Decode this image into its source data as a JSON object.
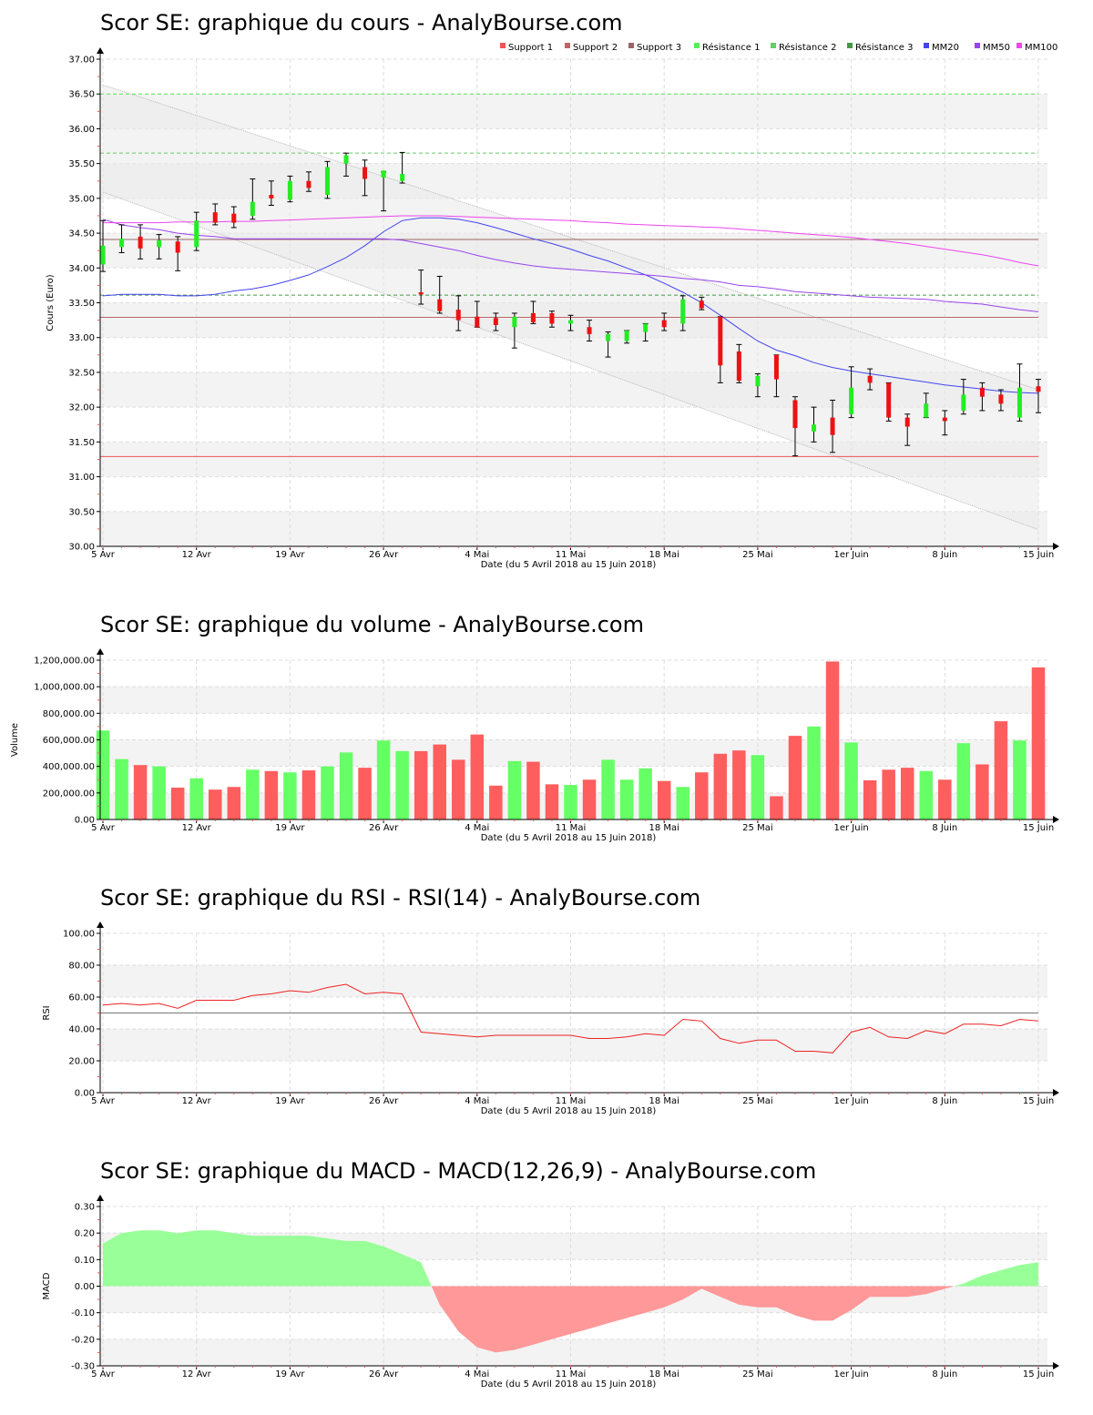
{
  "colors": {
    "up": "#22ee22",
    "down": "#ee1111",
    "vol_up": "#66ff66",
    "vol_down": "#ff5e5e",
    "macd_pos": "#99ff99",
    "macd_neg": "#ff9999",
    "mm20": "#4444ee",
    "mm50": "#9944ee",
    "mm100": "#ee44ee",
    "support1": "#ee5555",
    "support2": "#bb6666",
    "support3": "#996666",
    "res1": "#55ee55",
    "res2": "#66cc66",
    "res3": "#449944",
    "rsi": "#ee2222"
  },
  "chart_data": [
    {
      "id": "price",
      "type": "candlestick",
      "title": "Scor SE: graphique du cours - AnalyBourse.com",
      "ylabel": "Cours (Euro)",
      "xlabel": "Date (du 5 Avril 2018 au 15 Juin 2018)",
      "ylim": [
        30,
        37
      ],
      "yticks": [
        "30.00",
        "30.50",
        "31.00",
        "31.50",
        "32.00",
        "32.50",
        "33.00",
        "33.50",
        "34.00",
        "34.50",
        "35.00",
        "35.50",
        "36.00",
        "36.50",
        "37.00"
      ],
      "xticks": [
        {
          "i": 0,
          "label": "5 Avr"
        },
        {
          "i": 5,
          "label": "12 Avr"
        },
        {
          "i": 10,
          "label": "19 Avr"
        },
        {
          "i": 15,
          "label": "26 Avr"
        },
        {
          "i": 20,
          "label": "4 Mai"
        },
        {
          "i": 25,
          "label": "11 Mai"
        },
        {
          "i": 30,
          "label": "18 Mai"
        },
        {
          "i": 35,
          "label": "25 Mai"
        },
        {
          "i": 40,
          "label": "1er Juin"
        },
        {
          "i": 45,
          "label": "8 Juin"
        },
        {
          "i": 50,
          "label": "15 Juin"
        }
      ],
      "legend": [
        {
          "name": "Support 1",
          "color": "support1"
        },
        {
          "name": "Support 2",
          "color": "support2"
        },
        {
          "name": "Support 3",
          "color": "support3"
        },
        {
          "name": "Résistance 1",
          "color": "res1"
        },
        {
          "name": "Résistance 2",
          "color": "res2"
        },
        {
          "name": "Résistance 3",
          "color": "res3"
        },
        {
          "name": "MM20",
          "color": "mm20"
        },
        {
          "name": "MM50",
          "color": "mm50"
        },
        {
          "name": "MM100",
          "color": "mm100"
        }
      ],
      "levels": [
        {
          "name": "Support 1",
          "value": 31.29,
          "color": "support1",
          "dash": false
        },
        {
          "name": "Support 2",
          "value": 33.29,
          "color": "support2",
          "dash": false
        },
        {
          "name": "Support 3",
          "value": 34.41,
          "color": "support3",
          "dash": false
        },
        {
          "name": "Résistance 1",
          "value": 36.5,
          "color": "res1",
          "dash": true
        },
        {
          "name": "Résistance 2",
          "value": 35.65,
          "color": "res2",
          "dash": true
        },
        {
          "name": "Résistance 3",
          "value": 33.61,
          "color": "res3",
          "dash": true
        }
      ],
      "channel": {
        "upper": [
          [
            0,
            36.63
          ],
          [
            50,
            32.25
          ]
        ],
        "lower": [
          [
            0,
            35.09
          ],
          [
            50,
            30.24
          ]
        ]
      },
      "candles": [
        {
          "o": 34.05,
          "h": 34.68,
          "l": 33.95,
          "c": 34.32
        },
        {
          "o": 34.3,
          "h": 34.62,
          "l": 34.22,
          "c": 34.42
        },
        {
          "o": 34.45,
          "h": 34.62,
          "l": 34.13,
          "c": 34.28
        },
        {
          "o": 34.3,
          "h": 34.48,
          "l": 34.13,
          "c": 34.4
        },
        {
          "o": 34.38,
          "h": 34.45,
          "l": 33.96,
          "c": 34.22
        },
        {
          "o": 34.3,
          "h": 34.8,
          "l": 34.25,
          "c": 34.68
        },
        {
          "o": 34.8,
          "h": 34.92,
          "l": 34.62,
          "c": 34.65
        },
        {
          "o": 34.78,
          "h": 34.88,
          "l": 34.58,
          "c": 34.65
        },
        {
          "o": 34.75,
          "h": 35.28,
          "l": 34.7,
          "c": 34.95
        },
        {
          "o": 35.05,
          "h": 35.25,
          "l": 34.9,
          "c": 35.0
        },
        {
          "o": 34.98,
          "h": 35.32,
          "l": 34.95,
          "c": 35.25
        },
        {
          "o": 35.25,
          "h": 35.38,
          "l": 35.1,
          "c": 35.15
        },
        {
          "o": 35.05,
          "h": 35.53,
          "l": 35.0,
          "c": 35.45
        },
        {
          "o": 35.5,
          "h": 35.65,
          "l": 35.32,
          "c": 35.62
        },
        {
          "o": 35.45,
          "h": 35.55,
          "l": 35.04,
          "c": 35.28
        },
        {
          "o": 35.3,
          "h": 35.38,
          "l": 34.82,
          "c": 35.4
        },
        {
          "o": 35.25,
          "h": 35.66,
          "l": 35.22,
          "c": 35.35
        },
        {
          "o": 33.65,
          "h": 33.97,
          "l": 33.48,
          "c": 33.62
        },
        {
          "o": 33.55,
          "h": 33.88,
          "l": 33.35,
          "c": 33.38
        },
        {
          "o": 33.4,
          "h": 33.6,
          "l": 33.1,
          "c": 33.25
        },
        {
          "o": 33.3,
          "h": 33.52,
          "l": 33.15,
          "c": 33.15
        },
        {
          "o": 33.28,
          "h": 33.35,
          "l": 33.1,
          "c": 33.18
        },
        {
          "o": 33.15,
          "h": 33.35,
          "l": 32.85,
          "c": 33.3
        },
        {
          "o": 33.35,
          "h": 33.52,
          "l": 33.2,
          "c": 33.22
        },
        {
          "o": 33.35,
          "h": 33.38,
          "l": 33.15,
          "c": 33.2
        },
        {
          "o": 33.2,
          "h": 33.32,
          "l": 33.1,
          "c": 33.25
        },
        {
          "o": 33.15,
          "h": 33.25,
          "l": 32.95,
          "c": 33.05
        },
        {
          "o": 32.95,
          "h": 33.08,
          "l": 32.72,
          "c": 33.05
        },
        {
          "o": 32.95,
          "h": 33.1,
          "l": 32.92,
          "c": 33.1
        },
        {
          "o": 33.08,
          "h": 33.2,
          "l": 32.95,
          "c": 33.2
        },
        {
          "o": 33.25,
          "h": 33.35,
          "l": 33.1,
          "c": 33.15
        },
        {
          "o": 33.2,
          "h": 33.6,
          "l": 33.1,
          "c": 33.55
        },
        {
          "o": 33.53,
          "h": 33.58,
          "l": 33.4,
          "c": 33.42
        },
        {
          "o": 33.3,
          "h": 33.3,
          "l": 32.35,
          "c": 32.6
        },
        {
          "o": 32.8,
          "h": 32.9,
          "l": 32.35,
          "c": 32.38
        },
        {
          "o": 32.3,
          "h": 32.48,
          "l": 32.15,
          "c": 32.45
        },
        {
          "o": 32.75,
          "h": 32.75,
          "l": 32.15,
          "c": 32.4
        },
        {
          "o": 32.1,
          "h": 32.15,
          "l": 31.3,
          "c": 31.7
        },
        {
          "o": 31.65,
          "h": 32.0,
          "l": 31.5,
          "c": 31.75
        },
        {
          "o": 31.85,
          "h": 32.1,
          "l": 31.35,
          "c": 31.6
        },
        {
          "o": 31.9,
          "h": 32.58,
          "l": 31.85,
          "c": 32.28
        },
        {
          "o": 32.45,
          "h": 32.55,
          "l": 32.25,
          "c": 32.35
        },
        {
          "o": 32.35,
          "h": 32.35,
          "l": 31.8,
          "c": 31.85
        },
        {
          "o": 31.85,
          "h": 31.9,
          "l": 31.45,
          "c": 31.72
        },
        {
          "o": 31.85,
          "h": 32.2,
          "l": 31.85,
          "c": 32.05
        },
        {
          "o": 31.85,
          "h": 31.95,
          "l": 31.6,
          "c": 31.8
        },
        {
          "o": 31.95,
          "h": 32.4,
          "l": 31.9,
          "c": 32.18
        },
        {
          "o": 32.28,
          "h": 32.35,
          "l": 31.95,
          "c": 32.15
        },
        {
          "o": 32.18,
          "h": 32.25,
          "l": 31.95,
          "c": 32.05
        },
        {
          "o": 31.85,
          "h": 32.62,
          "l": 31.8,
          "c": 32.28
        },
        {
          "o": 32.3,
          "h": 32.4,
          "l": 31.92,
          "c": 32.22
        }
      ],
      "mm20": [
        33.6,
        33.62,
        33.62,
        33.62,
        33.6,
        33.6,
        33.62,
        33.67,
        33.7,
        33.75,
        33.82,
        33.9,
        34.02,
        34.15,
        34.32,
        34.52,
        34.68,
        34.72,
        34.72,
        34.7,
        34.65,
        34.58,
        34.5,
        34.42,
        34.35,
        34.27,
        34.18,
        34.1,
        34.0,
        33.9,
        33.78,
        33.65,
        33.5,
        33.32,
        33.13,
        32.95,
        32.82,
        32.74,
        32.64,
        32.57,
        32.52,
        32.48,
        32.44,
        32.4,
        32.36,
        32.32,
        32.29,
        32.26,
        32.23,
        32.21,
        32.2
      ],
      "mm50": [
        34.7,
        34.62,
        34.58,
        34.55,
        34.5,
        34.47,
        34.45,
        34.42,
        34.42,
        34.42,
        34.42,
        34.42,
        34.42,
        34.42,
        34.42,
        34.42,
        34.4,
        34.35,
        34.3,
        34.25,
        34.18,
        34.12,
        34.07,
        34.03,
        34.0,
        33.98,
        33.96,
        33.94,
        33.92,
        33.9,
        33.88,
        33.85,
        33.83,
        33.8,
        33.75,
        33.73,
        33.7,
        33.66,
        33.64,
        33.62,
        33.6,
        33.58,
        33.57,
        33.56,
        33.55,
        33.52,
        33.5,
        33.48,
        33.44,
        33.4,
        33.37
      ],
      "mm100": [
        34.65,
        34.65,
        34.65,
        34.65,
        34.66,
        34.66,
        34.66,
        34.67,
        34.67,
        34.68,
        34.69,
        34.7,
        34.71,
        34.72,
        34.73,
        34.74,
        34.75,
        34.75,
        34.75,
        34.74,
        34.73,
        34.72,
        34.71,
        34.7,
        34.69,
        34.68,
        34.66,
        34.65,
        34.63,
        34.62,
        34.61,
        34.6,
        34.59,
        34.58,
        34.56,
        34.54,
        34.52,
        34.5,
        34.48,
        34.46,
        34.44,
        34.41,
        34.38,
        34.35,
        34.31,
        34.27,
        34.23,
        34.19,
        34.14,
        34.08,
        34.03
      ]
    },
    {
      "id": "volume",
      "type": "bar",
      "title": "Scor SE: graphique du volume - AnalyBourse.com",
      "ylabel": "Volume",
      "xlabel": "Date (du 5 Avril 2018 au 15 Juin 2018)",
      "ylim": [
        0,
        1200000
      ],
      "yticks": [
        "0.00",
        "200,000.00",
        "400,000.00",
        "600,000.00",
        "800,000.00",
        "1,000,000.00",
        "1,200,000.00"
      ],
      "xticks": [
        {
          "i": 0,
          "label": "5 Avr"
        },
        {
          "i": 5,
          "label": "12 Avr"
        },
        {
          "i": 10,
          "label": "19 Avr"
        },
        {
          "i": 15,
          "label": "26 Avr"
        },
        {
          "i": 20,
          "label": "4 Mai"
        },
        {
          "i": 25,
          "label": "11 Mai"
        },
        {
          "i": 30,
          "label": "18 Mai"
        },
        {
          "i": 35,
          "label": "25 Mai"
        },
        {
          "i": 40,
          "label": "1er Juin"
        },
        {
          "i": 45,
          "label": "8 Juin"
        },
        {
          "i": 50,
          "label": "15 Juin"
        }
      ],
      "values": [
        670000,
        455000,
        410000,
        400000,
        240000,
        310000,
        225000,
        245000,
        375000,
        365000,
        355000,
        370000,
        400000,
        505000,
        390000,
        595000,
        515000,
        515000,
        565000,
        450000,
        640000,
        255000,
        440000,
        435000,
        265000,
        260000,
        300000,
        450000,
        300000,
        385000,
        290000,
        245000,
        355000,
        495000,
        520000,
        485000,
        175000,
        630000,
        700000,
        1190000,
        580000,
        295000,
        375000,
        390000,
        365000,
        300000,
        575000,
        415000,
        740000,
        595000,
        1145000
      ]
    },
    {
      "id": "rsi",
      "type": "line",
      "title": "Scor SE: graphique du RSI - RSI(14) - AnalyBourse.com",
      "ylabel": "RSI",
      "xlabel": "Date (du 5 Avril 2018 au 15 Juin 2018)",
      "ylim": [
        0,
        100
      ],
      "yticks": [
        "0.00",
        "20.00",
        "40.00",
        "60.00",
        "80.00",
        "100.00"
      ],
      "reference": 50,
      "xticks": [
        {
          "i": 0,
          "label": "5 Avr"
        },
        {
          "i": 5,
          "label": "12 Avr"
        },
        {
          "i": 10,
          "label": "19 Avr"
        },
        {
          "i": 15,
          "label": "26 Avr"
        },
        {
          "i": 20,
          "label": "4 Mai"
        },
        {
          "i": 25,
          "label": "11 Mai"
        },
        {
          "i": 30,
          "label": "18 Mai"
        },
        {
          "i": 35,
          "label": "25 Mai"
        },
        {
          "i": 40,
          "label": "1er Juin"
        },
        {
          "i": 45,
          "label": "8 Juin"
        },
        {
          "i": 50,
          "label": "15 Juin"
        }
      ],
      "values": [
        55,
        56,
        55,
        56,
        53,
        58,
        58,
        58,
        61,
        62,
        64,
        63,
        66,
        68,
        62,
        63,
        62,
        38,
        37,
        36,
        35,
        36,
        36,
        36,
        36,
        36,
        34,
        34,
        35,
        37,
        36,
        46,
        45,
        34,
        31,
        33,
        33,
        26,
        26,
        25,
        38,
        41,
        35,
        34,
        39,
        37,
        43,
        43,
        42,
        46,
        45
      ]
    },
    {
      "id": "macd",
      "type": "area",
      "title": "Scor SE: graphique du MACD - MACD(12,26,9) - AnalyBourse.com",
      "ylabel": "MACD",
      "xlabel": "Date (du 5 Avril 2018 au 15 Juin 2018)",
      "ylim": [
        -0.3,
        0.3
      ],
      "yticks": [
        "-0.30",
        "-0.20",
        "-0.10",
        "0.00",
        "0.10",
        "0.20",
        "0.30"
      ],
      "xticks": [
        {
          "i": 0,
          "label": "5 Avr"
        },
        {
          "i": 5,
          "label": "12 Avr"
        },
        {
          "i": 10,
          "label": "19 Avr"
        },
        {
          "i": 15,
          "label": "26 Avr"
        },
        {
          "i": 20,
          "label": "4 Mai"
        },
        {
          "i": 25,
          "label": "11 Mai"
        },
        {
          "i": 30,
          "label": "18 Mai"
        },
        {
          "i": 35,
          "label": "25 Mai"
        },
        {
          "i": 40,
          "label": "1er Juin"
        },
        {
          "i": 45,
          "label": "8 Juin"
        },
        {
          "i": 50,
          "label": "15 Juin"
        }
      ],
      "values": [
        0.16,
        0.2,
        0.21,
        0.21,
        0.2,
        0.21,
        0.21,
        0.2,
        0.19,
        0.19,
        0.19,
        0.19,
        0.18,
        0.17,
        0.17,
        0.15,
        0.12,
        0.09,
        -0.07,
        -0.17,
        -0.23,
        -0.25,
        -0.24,
        -0.22,
        -0.2,
        -0.18,
        -0.16,
        -0.14,
        -0.12,
        -0.1,
        -0.08,
        -0.05,
        -0.01,
        -0.04,
        -0.07,
        -0.08,
        -0.08,
        -0.11,
        -0.13,
        -0.13,
        -0.09,
        -0.04,
        -0.04,
        -0.04,
        -0.03,
        -0.01,
        0.01,
        0.04,
        0.06,
        0.08,
        0.09
      ]
    }
  ]
}
